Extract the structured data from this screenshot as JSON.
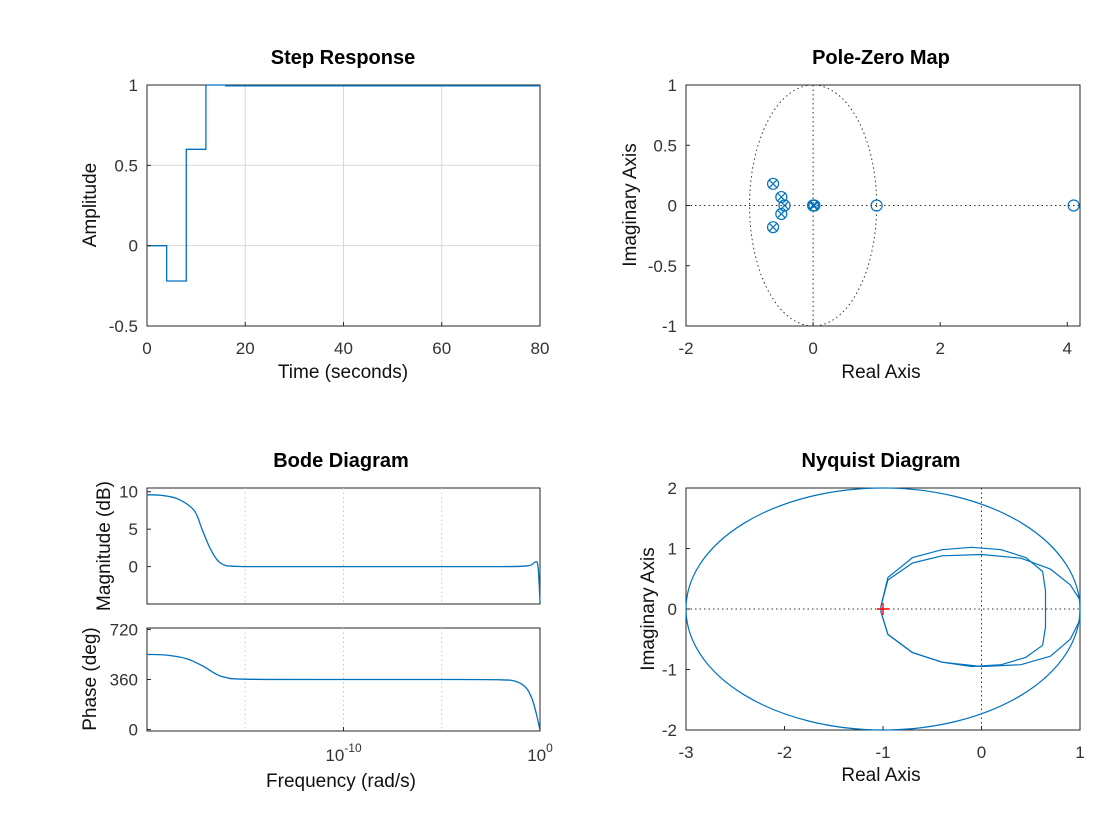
{
  "colors": {
    "line": "#0072bd",
    "marker_red": "#ff0000",
    "grid": "#d9d9d9",
    "axis": "#262626"
  },
  "chart_data": [
    {
      "type": "line",
      "title": "Step Response",
      "xlabel": "Time (seconds)",
      "ylabel": "Amplitude",
      "xlim": [
        0,
        80
      ],
      "ylim": [
        -0.5,
        1
      ],
      "xticks": [
        "0",
        "20",
        "40",
        "60",
        "80"
      ],
      "yticks": [
        "-0.5",
        "0",
        "0.5",
        "1"
      ],
      "grid": true,
      "x": [
        0,
        4,
        4,
        8,
        8,
        12,
        12,
        16,
        16,
        80
      ],
      "y": [
        0,
        0,
        -0.22,
        -0.22,
        0.6,
        0.6,
        1.0,
        1.0,
        0.995,
        0.995
      ]
    },
    {
      "type": "scatter",
      "title": "Pole-Zero Map",
      "xlabel": "Real Axis",
      "ylabel": "Imaginary Axis",
      "xlim": [
        -2,
        4.2
      ],
      "ylim": [
        -1,
        1
      ],
      "xticks": [
        "-2",
        "0",
        "2",
        "4"
      ],
      "yticks": [
        "-1",
        "-0.5",
        "0",
        "0.5",
        "1"
      ],
      "unit_circle": true,
      "zeros": [
        [
          -0.63,
          0.18
        ],
        [
          -0.63,
          -0.18
        ],
        [
          -0.5,
          0.07
        ],
        [
          -0.5,
          -0.07
        ],
        [
          -0.45,
          0
        ],
        [
          0,
          0
        ],
        [
          0.02,
          0
        ],
        [
          1.0,
          0
        ],
        [
          4.1,
          0
        ]
      ],
      "poles": [
        [
          -0.63,
          0.18
        ],
        [
          -0.63,
          -0.18
        ],
        [
          -0.5,
          0.07
        ],
        [
          -0.5,
          -0.07
        ],
        [
          -0.45,
          0
        ],
        [
          0,
          0
        ],
        [
          0.02,
          0
        ]
      ]
    },
    {
      "type": "line",
      "title": "Bode Diagram",
      "xlabel": "Frequency  (rad/s)",
      "magnitude": {
        "ylabel": "Magnitude (dB)",
        "ylim": [
          -5,
          10.5
        ],
        "yticks": [
          "10",
          "5",
          "0"
        ],
        "x_log10": [
          -20,
          -19.2,
          -18.4,
          -17.6,
          -17.2,
          -16.8,
          -16.4,
          -16.0,
          -15.4,
          -14.5,
          -10,
          -5,
          -2,
          -0.6,
          -0.25,
          -0.1,
          0
        ],
        "y": [
          9.6,
          9.5,
          9.0,
          7.5,
          5.0,
          2.5,
          0.8,
          0.15,
          0.02,
          0,
          0,
          0,
          0,
          0.1,
          0.6,
          0,
          -4.8
        ]
      },
      "phase": {
        "ylabel": "Phase (deg)",
        "ylim": [
          -10,
          730
        ],
        "yticks": [
          "720",
          "360",
          "0"
        ],
        "x_log10": [
          -20,
          -19.0,
          -18.0,
          -17.2,
          -16.5,
          -16.0,
          -15.0,
          -10,
          -5,
          -2,
          -1.2,
          -0.7,
          -0.4,
          -0.2,
          0
        ],
        "y": [
          540,
          535,
          510,
          460,
          400,
          375,
          362,
          360,
          360,
          358,
          345,
          300,
          220,
          120,
          0
        ]
      },
      "xlim_log10": [
        -20,
        0
      ],
      "xticks": [
        {
          "base": "10",
          "exp": "-10",
          "value": -10
        },
        {
          "base": "10",
          "exp": "0",
          "value": 0
        }
      ],
      "minor_grid_log10": [
        -15,
        -10,
        -5
      ]
    },
    {
      "type": "line",
      "title": "Nyquist Diagram",
      "xlabel": "Real Axis",
      "ylabel": "Imaginary Axis",
      "xlim": [
        -3,
        1
      ],
      "ylim": [
        -2,
        2
      ],
      "xticks": [
        "-3",
        "-2",
        "-1",
        "0",
        "1"
      ],
      "yticks": [
        "-2",
        "-1",
        "0",
        "1",
        "2"
      ],
      "critical_point": [
        -1,
        0
      ],
      "curves": [
        {
          "kind": "ellipse",
          "cx": -1,
          "cy": 0,
          "rx": 2,
          "ry": 2
        },
        {
          "kind": "loop",
          "x": [
            -1.02,
            -0.95,
            -0.7,
            -0.4,
            -0.1,
            0.2,
            0.45,
            0.62,
            0.65,
            0.65
          ],
          "y_upper": [
            0.05,
            0.52,
            0.85,
            0.98,
            1.02,
            0.98,
            0.85,
            0.62,
            0.3,
            0.0
          ],
          "y_lower": [
            -0.05,
            -0.42,
            -0.72,
            -0.88,
            -0.95,
            -0.92,
            -0.8,
            -0.6,
            -0.3,
            0.0
          ]
        },
        {
          "kind": "loop",
          "x": [
            -1.02,
            -0.95,
            -0.7,
            -0.4,
            0.0,
            0.4,
            0.7,
            0.9,
            1.0,
            1.0
          ],
          "y_upper": [
            0.05,
            0.48,
            0.76,
            0.88,
            0.9,
            0.84,
            0.66,
            0.4,
            0.15,
            0.0
          ],
          "y_lower": [
            -0.05,
            -0.42,
            -0.72,
            -0.88,
            -0.95,
            -0.92,
            -0.78,
            -0.5,
            -0.18,
            0.0
          ]
        }
      ]
    }
  ]
}
